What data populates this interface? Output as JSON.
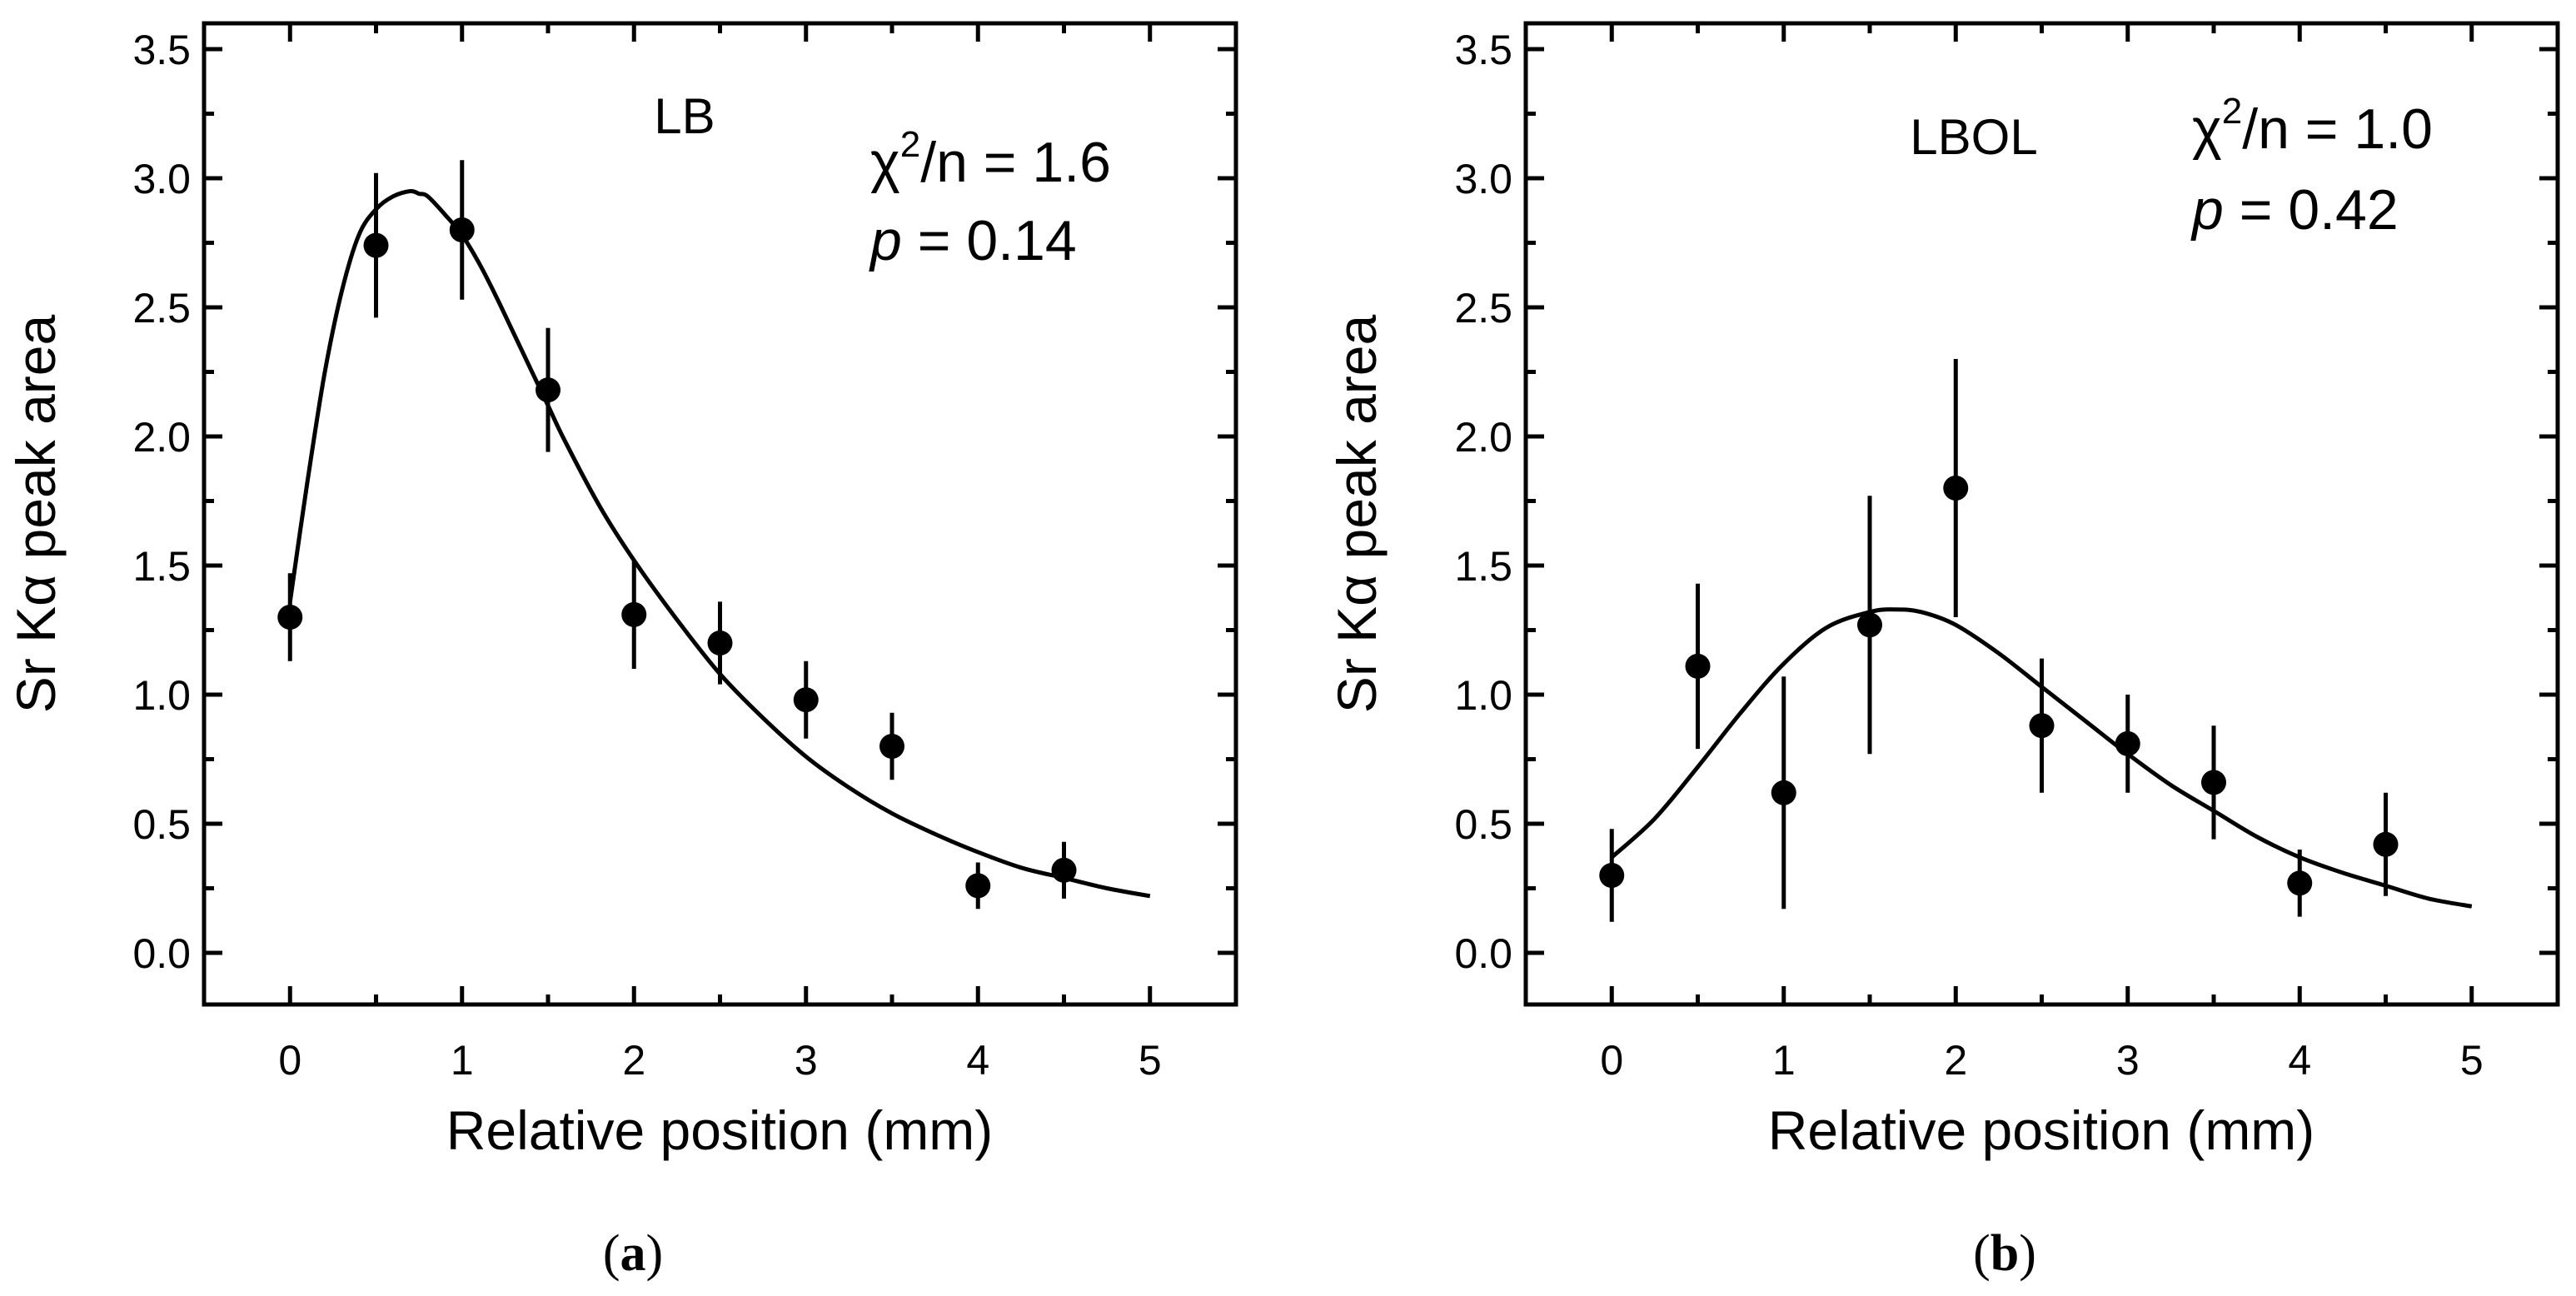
{
  "chart_data": [
    {
      "type": "scatter",
      "panel_label": "a",
      "annotation": "LB",
      "stats": {
        "chi2_prefix": "χ",
        "chi2_sup": "2",
        "chi2_suffix": "/n = 1.6",
        "p_symbol": "p",
        "p_value": " = 0.14"
      },
      "xlabel": "Relative position (mm)",
      "ylabel": "Sr Kα peak area",
      "xlim": [
        -0.5,
        5.5
      ],
      "ylim": [
        -0.2,
        3.6
      ],
      "xticks": [
        0,
        1,
        2,
        3,
        4,
        5
      ],
      "xtick_labels": [
        "0",
        "1",
        "2",
        "3",
        "4",
        "5"
      ],
      "yticks": [
        0.0,
        0.5,
        1.0,
        1.5,
        2.0,
        2.5,
        3.0,
        3.5
      ],
      "ytick_labels": [
        "0.0",
        "0.5",
        "1.0",
        "1.5",
        "2.0",
        "2.5",
        "3.0",
        "3.5"
      ],
      "points": [
        {
          "x": 0.0,
          "y": 1.3,
          "err": 0.17
        },
        {
          "x": 0.5,
          "y": 2.74,
          "err": 0.28
        },
        {
          "x": 1.0,
          "y": 2.8,
          "err": 0.27
        },
        {
          "x": 1.5,
          "y": 2.18,
          "err": 0.24
        },
        {
          "x": 2.0,
          "y": 1.31,
          "err": 0.21
        },
        {
          "x": 2.5,
          "y": 1.2,
          "err": 0.16
        },
        {
          "x": 3.0,
          "y": 0.98,
          "err": 0.15
        },
        {
          "x": 3.5,
          "y": 0.8,
          "err": 0.13
        },
        {
          "x": 4.0,
          "y": 0.26,
          "err": 0.09
        },
        {
          "x": 4.5,
          "y": 0.32,
          "err": 0.11
        }
      ],
      "fit": {
        "name": "fit",
        "x": [
          0.0,
          0.1,
          0.2,
          0.3,
          0.4,
          0.5,
          0.6,
          0.7,
          0.75,
          0.8,
          0.9,
          1.0,
          1.1,
          1.2,
          1.3,
          1.4,
          1.5,
          1.6,
          1.8,
          2.0,
          2.25,
          2.5,
          2.75,
          3.0,
          3.25,
          3.5,
          3.75,
          4.0,
          4.25,
          4.5,
          4.75,
          5.0
        ],
        "y": [
          1.36,
          1.82,
          2.24,
          2.56,
          2.78,
          2.88,
          2.93,
          2.95,
          2.94,
          2.93,
          2.86,
          2.78,
          2.67,
          2.54,
          2.4,
          2.26,
          2.12,
          1.98,
          1.73,
          1.52,
          1.29,
          1.08,
          0.91,
          0.76,
          0.64,
          0.54,
          0.46,
          0.39,
          0.33,
          0.29,
          0.25,
          0.22
        ]
      }
    },
    {
      "type": "scatter",
      "panel_label": "b",
      "annotation": "LBOL",
      "stats": {
        "chi2_prefix": "χ",
        "chi2_sup": "2",
        "chi2_suffix": "/n = 1.0",
        "p_symbol": "p",
        "p_value": " = 0.42"
      },
      "xlabel": "Relative position (mm)",
      "ylabel": "Sr Kα peak area",
      "xlim": [
        -0.5,
        5.5
      ],
      "ylim": [
        -0.2,
        3.6
      ],
      "xticks": [
        0,
        1,
        2,
        3,
        4,
        5
      ],
      "xtick_labels": [
        "0",
        "1",
        "2",
        "3",
        "4",
        "5"
      ],
      "yticks": [
        0.0,
        0.5,
        1.0,
        1.5,
        2.0,
        2.5,
        3.0,
        3.5
      ],
      "ytick_labels": [
        "0.0",
        "0.5",
        "1.0",
        "1.5",
        "2.0",
        "2.5",
        "3.0",
        "3.5"
      ],
      "points": [
        {
          "x": 0.0,
          "y": 0.3,
          "err": 0.18
        },
        {
          "x": 0.5,
          "y": 1.11,
          "err": 0.32
        },
        {
          "x": 1.0,
          "y": 0.62,
          "err": 0.45
        },
        {
          "x": 1.5,
          "y": 1.27,
          "err": 0.5
        },
        {
          "x": 2.0,
          "y": 1.8,
          "err": 0.5
        },
        {
          "x": 2.5,
          "y": 0.88,
          "err": 0.26
        },
        {
          "x": 3.0,
          "y": 0.81,
          "err": 0.19
        },
        {
          "x": 3.5,
          "y": 0.66,
          "err": 0.22
        },
        {
          "x": 4.0,
          "y": 0.27,
          "err": 0.13
        },
        {
          "x": 4.5,
          "y": 0.42,
          "err": 0.2
        }
      ],
      "fit": {
        "name": "fit",
        "x": [
          0.0,
          0.25,
          0.5,
          0.75,
          1.0,
          1.25,
          1.5,
          1.65,
          1.8,
          2.0,
          2.25,
          2.5,
          2.75,
          3.0,
          3.25,
          3.5,
          3.75,
          4.0,
          4.25,
          4.5,
          4.75,
          5.0
        ],
        "y": [
          0.37,
          0.52,
          0.72,
          0.93,
          1.12,
          1.26,
          1.32,
          1.33,
          1.32,
          1.27,
          1.16,
          1.03,
          0.9,
          0.77,
          0.65,
          0.55,
          0.45,
          0.37,
          0.31,
          0.26,
          0.21,
          0.18
        ]
      }
    }
  ]
}
